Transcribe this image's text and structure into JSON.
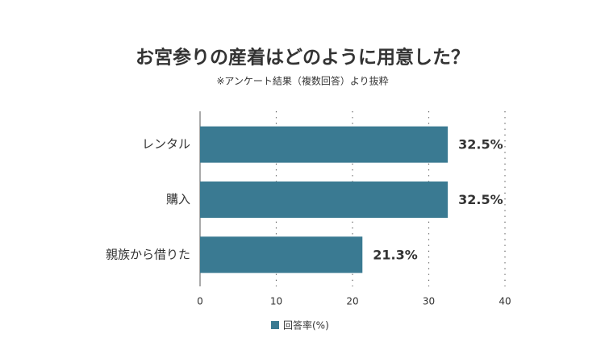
{
  "chart_data": {
    "type": "bar",
    "orientation": "horizontal",
    "title": "お宮参りの産着はどのように用意した？",
    "subtitle": "※アンケート結果（複数回答）より抜粋",
    "categories": [
      "レンタル",
      "購入",
      "親族から借りた"
    ],
    "series": [
      {
        "name": "回答率(%)",
        "color": "#3a7a92",
        "values": [
          32.5,
          32.5,
          21.3
        ],
        "value_labels": [
          "32.5%",
          "32.5%",
          "21.3%"
        ]
      }
    ],
    "xlim": [
      0,
      40
    ],
    "xticks": [
      0,
      10,
      20,
      30,
      40
    ],
    "grid": true,
    "legend": "bottom"
  }
}
